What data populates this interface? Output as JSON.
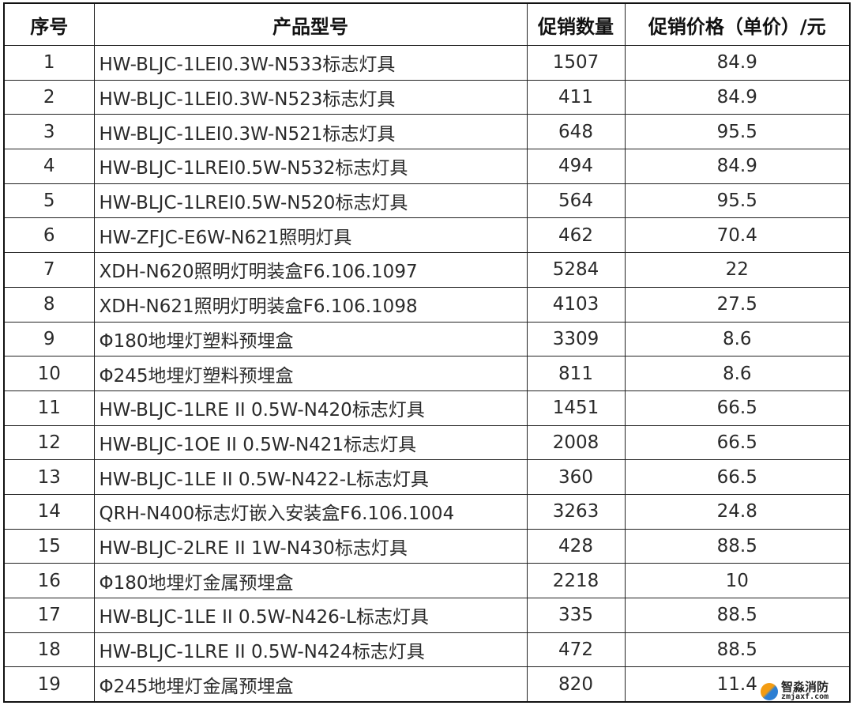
{
  "table": {
    "headers": [
      "序号",
      "产品型号",
      "促销数量",
      "促销价格（单价）/元"
    ],
    "rows": [
      [
        "1",
        "HW-BLJC-1LEI0.3W-N533标志灯具",
        "1507",
        "84.9"
      ],
      [
        "2",
        "HW-BLJC-1LEI0.3W-N523标志灯具",
        "411",
        "84.9"
      ],
      [
        "3",
        "HW-BLJC-1LEI0.3W-N521标志灯具",
        "648",
        "95.5"
      ],
      [
        "4",
        "HW-BLJC-1LREI0.5W-N532标志灯具",
        "494",
        "84.9"
      ],
      [
        "5",
        "HW-BLJC-1LREI0.5W-N520标志灯具",
        "564",
        "95.5"
      ],
      [
        "6",
        "HW-ZFJC-E6W-N621照明灯具",
        "462",
        "70.4"
      ],
      [
        "7",
        "XDH-N620照明灯明装盒F6.106.1097",
        "5284",
        "22"
      ],
      [
        "8",
        "XDH-N621照明灯明装盒F6.106.1098",
        "4103",
        "27.5"
      ],
      [
        "9",
        "Φ180地埋灯塑料预埋盒",
        "3309",
        "8.6"
      ],
      [
        "10",
        "Φ245地埋灯塑料预埋盒",
        "811",
        "8.6"
      ],
      [
        "11",
        "HW-BLJC-1LRE II 0.5W-N420标志灯具",
        "1451",
        "66.5"
      ],
      [
        "12",
        "HW-BLJC-1OE II 0.5W-N421标志灯具",
        "2008",
        "66.5"
      ],
      [
        "13",
        "HW-BLJC-1LE II 0.5W-N422-L标志灯具",
        "360",
        "66.5"
      ],
      [
        "14",
        "QRH-N400标志灯嵌入安装盒F6.106.1004",
        "3263",
        "24.8"
      ],
      [
        "15",
        "HW-BLJC-2LRE II 1W-N430标志灯具",
        "428",
        "88.5"
      ],
      [
        "16",
        "Φ180地埋灯金属预埋盒",
        "2218",
        "10"
      ],
      [
        "17",
        "HW-BLJC-1LE II 0.5W-N426-L标志灯具",
        "335",
        "88.5"
      ],
      [
        "18",
        "HW-BLJC-1LRE II 0.5W-N424标志灯具",
        "472",
        "88.5"
      ],
      [
        "19",
        "Φ245地埋灯金属预埋盒",
        "820",
        "11.4"
      ]
    ]
  },
  "watermark": {
    "name": "智淼消防",
    "url": "zmjaxf.com"
  }
}
